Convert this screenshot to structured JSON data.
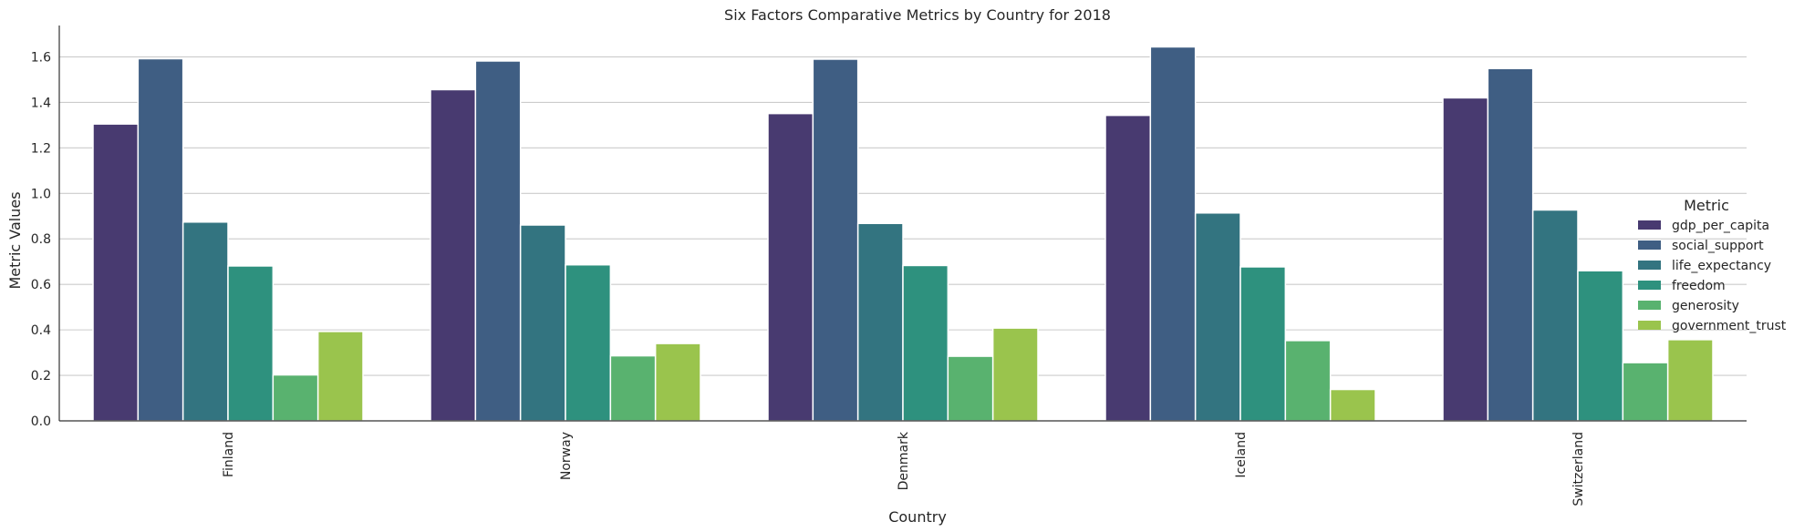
{
  "chart_data": {
    "type": "bar",
    "title": "Six Factors Comparative Metrics by Country for 2018",
    "xlabel": "Country",
    "ylabel": "Metric Values",
    "categories": [
      "Finland",
      "Norway",
      "Denmark",
      "Iceland",
      "Switzerland"
    ],
    "ylim": [
      0,
      1.73
    ],
    "yticks": [
      "0.0",
      "0.2",
      "0.4",
      "0.6",
      "0.8",
      "1.0",
      "1.2",
      "1.4",
      "1.6"
    ],
    "grid": true,
    "legend": {
      "title": "Metric",
      "placement": "right"
    },
    "series": [
      {
        "name": "gdp_per_capita",
        "color": "#483a70",
        "values": [
          1.305,
          1.456,
          1.351,
          1.343,
          1.42
        ]
      },
      {
        "name": "social_support",
        "color": "#3f5e83",
        "values": [
          1.592,
          1.582,
          1.59,
          1.644,
          1.549
        ]
      },
      {
        "name": "life_expectancy",
        "color": "#337480",
        "values": [
          0.874,
          0.861,
          0.868,
          0.914,
          0.927
        ]
      },
      {
        "name": "freedom",
        "color": "#2e917e",
        "values": [
          0.681,
          0.686,
          0.683,
          0.677,
          0.66
        ]
      },
      {
        "name": "generosity",
        "color": "#59b26f",
        "values": [
          0.202,
          0.286,
          0.284,
          0.353,
          0.256
        ]
      },
      {
        "name": "government_trust",
        "color": "#9ac44d",
        "values": [
          0.393,
          0.34,
          0.408,
          0.138,
          0.357
        ]
      }
    ]
  }
}
